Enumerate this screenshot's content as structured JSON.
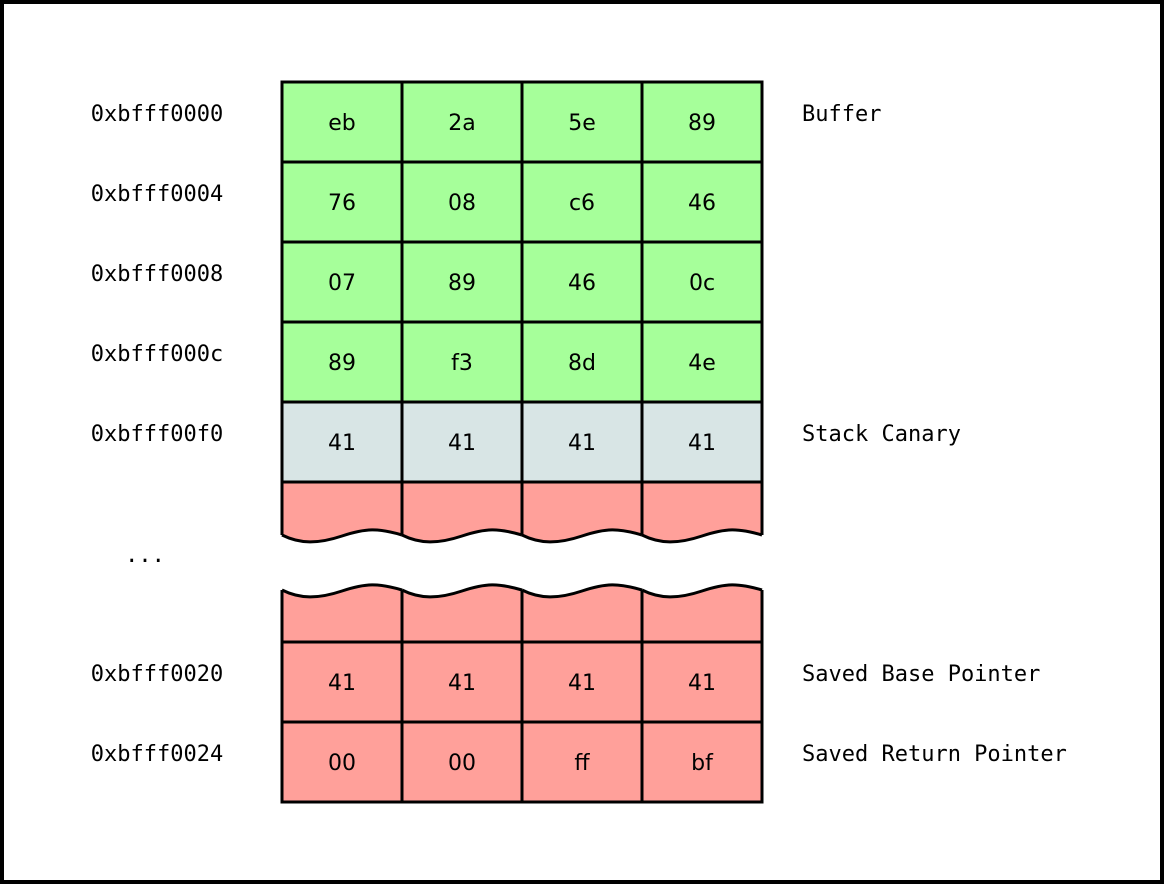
{
  "colors": {
    "buffer": "#a6ff9a",
    "canary": "#d8e5e5",
    "saved": "#ffa09a",
    "stroke": "#000000"
  },
  "rows": [
    {
      "address": "0xbfff0000",
      "bytes": [
        "eb",
        "2a",
        "5e",
        "89"
      ],
      "label": "Buffer",
      "region": "buffer"
    },
    {
      "address": "0xbfff0004",
      "bytes": [
        "76",
        "08",
        "c6",
        "46"
      ],
      "label": "",
      "region": "buffer"
    },
    {
      "address": "0xbfff0008",
      "bytes": [
        "07",
        "89",
        "46",
        "0c"
      ],
      "label": "",
      "region": "buffer"
    },
    {
      "address": "0xbfff000c",
      "bytes": [
        "89",
        "f3",
        "8d",
        "4e"
      ],
      "label": "",
      "region": "buffer"
    },
    {
      "address": "0xbfff00f0",
      "bytes": [
        "41",
        "41",
        "41",
        "41"
      ],
      "label": "Stack Canary",
      "region": "canary"
    },
    {
      "address": "0xbfff0020",
      "bytes": [
        "41",
        "41",
        "41",
        "41"
      ],
      "label": "Saved Base Pointer",
      "region": "saved"
    },
    {
      "address": "0xbfff0024",
      "bytes": [
        "00",
        "00",
        "ff",
        "bf"
      ],
      "label": "Saved Return Pointer",
      "region": "saved"
    }
  ],
  "gap_label": "..."
}
